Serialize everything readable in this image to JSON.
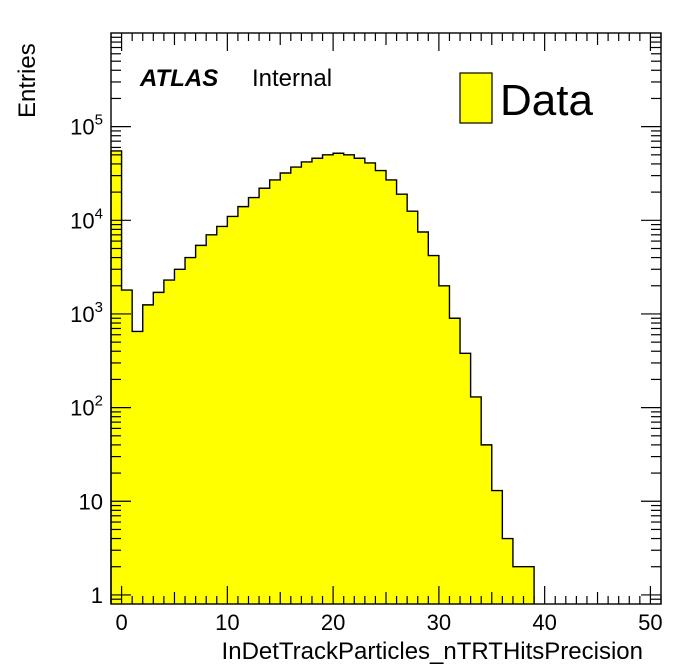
{
  "chart_data": {
    "type": "bar",
    "title": "",
    "xlabel": "InDetTrackParticles_nTRTHitsPrecision",
    "ylabel": "Entries",
    "xlim": [
      -1,
      51
    ],
    "ylim": [
      0.8,
      1000000
    ],
    "ylog": true,
    "bin_width": 1,
    "x_ticks": [
      0,
      10,
      20,
      30,
      40,
      50
    ],
    "x_tick_labels": [
      "0",
      "10",
      "20",
      "30",
      "40",
      "50"
    ],
    "y_ticks": [
      1,
      10,
      100,
      1000,
      10000,
      100000
    ],
    "y_tick_labels": [
      {
        "base": "1",
        "exp": ""
      },
      {
        "base": "10",
        "exp": ""
      },
      {
        "base": "10",
        "exp": "2"
      },
      {
        "base": "10",
        "exp": "3"
      },
      {
        "base": "10",
        "exp": "4"
      },
      {
        "base": "10",
        "exp": "5"
      }
    ],
    "series": [
      {
        "name": "Data",
        "color": "#ffff00",
        "bins_low_edge": [
          -1,
          0,
          1,
          2,
          3,
          4,
          5,
          6,
          7,
          8,
          9,
          10,
          11,
          12,
          13,
          14,
          15,
          16,
          17,
          18,
          19,
          20,
          21,
          22,
          23,
          24,
          25,
          26,
          27,
          28,
          29,
          30,
          31,
          32,
          33,
          34,
          35,
          36,
          37,
          38
        ],
        "values": [
          55000,
          1800,
          650,
          1250,
          1700,
          2300,
          3000,
          4000,
          5400,
          7000,
          8600,
          11000,
          14000,
          17500,
          22000,
          27000,
          32000,
          37000,
          42000,
          46000,
          50000,
          52000,
          50000,
          46000,
          41000,
          34000,
          27000,
          19000,
          12500,
          7500,
          4200,
          2000,
          900,
          380,
          130,
          40,
          13,
          4,
          2,
          2
        ]
      }
    ],
    "legend": {
      "position": "top-right",
      "entries": [
        "Data"
      ]
    },
    "label": {
      "experiment": "ATLAS",
      "status": "Internal"
    },
    "grid": false
  }
}
